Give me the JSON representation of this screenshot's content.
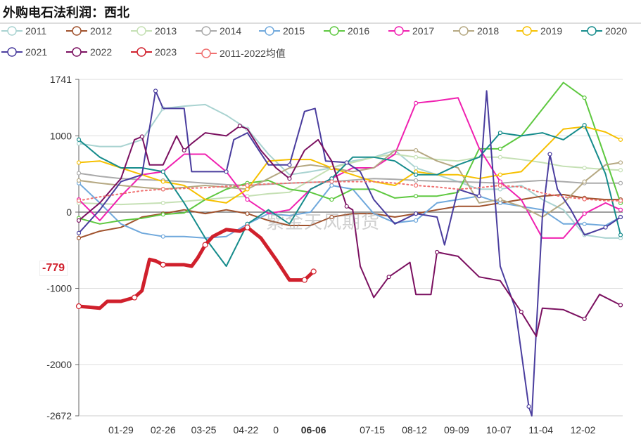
{
  "title": "外购电石法利润：西北",
  "watermark": "紫金天风期货",
  "chart_data": {
    "type": "line",
    "title": "外购电石法利润：西北",
    "ylim": [
      -2672,
      1741
    ],
    "y_ticks": [
      "1741",
      "1000",
      "0",
      "-1000",
      "-2000",
      "-2672"
    ],
    "x_ticks": [
      {
        "label": "01-29",
        "date": "01-29"
      },
      {
        "label": "02-26",
        "date": "02-26"
      },
      {
        "label": "03-25",
        "date": "03-25"
      },
      {
        "label": "04-22",
        "date": "04-22"
      },
      {
        "label": "0",
        "date": "05-12"
      },
      {
        "label": "06-06",
        "date": "06-06",
        "highlight": true
      },
      {
        "label": "07-15",
        "date": "07-15"
      },
      {
        "label": "08-12",
        "date": "08-12"
      },
      {
        "label": "09-09",
        "date": "09-09"
      },
      {
        "label": "10-07",
        "date": "10-07"
      },
      {
        "label": "11-04",
        "date": "11-04"
      },
      {
        "label": "12-02",
        "date": "12-02"
      }
    ],
    "grid": "horizontal",
    "legend_placement": "top",
    "current_value_label": "-779",
    "x": [
      "01-01",
      "01-15",
      "01-29",
      "02-12",
      "02-26",
      "03-12",
      "03-26",
      "04-09",
      "04-23",
      "05-07",
      "05-21",
      "06-04",
      "06-18",
      "07-02",
      "07-16",
      "07-30",
      "08-13",
      "08-27",
      "09-10",
      "09-24",
      "10-08",
      "10-22",
      "11-05",
      "11-19",
      "12-03",
      "12-17",
      "12-27"
    ],
    "series": [
      {
        "name": "2011",
        "color": "#a9d3d1",
        "values": [
          900,
          860,
          860,
          950,
          1360,
          1390,
          1410,
          1270,
          1090,
          760,
          490,
          530,
          580,
          670,
          720,
          810,
          580,
          490,
          400,
          300,
          300,
          350,
          165,
          30,
          -300,
          -340,
          -340
        ]
      },
      {
        "name": "2012",
        "color": "#a0522d",
        "values": [
          -340,
          -250,
          -200,
          -65,
          -20,
          30,
          -20,
          30,
          -20,
          -110,
          -175,
          -175,
          -65,
          -20,
          -20,
          -65,
          -20,
          30,
          75,
          75,
          120,
          165,
          210,
          230,
          185,
          165,
          165
        ]
      },
      {
        "name": "2013",
        "color": "#c5e0b4",
        "values": [
          120,
          110,
          100,
          110,
          120,
          140,
          165,
          190,
          210,
          240,
          260,
          420,
          580,
          650,
          720,
          760,
          720,
          690,
          670,
          720,
          720,
          690,
          650,
          600,
          580,
          560,
          550
        ]
      },
      {
        "name": "2014",
        "color": "#aaaaaa",
        "values": [
          510,
          470,
          440,
          425,
          415,
          400,
          380,
          360,
          350,
          365,
          380,
          390,
          400,
          420,
          440,
          430,
          415,
          405,
          400,
          390,
          380,
          400,
          415,
          400,
          380,
          380,
          380
        ]
      },
      {
        "name": "2015",
        "color": "#6fa8dc",
        "values": [
          380,
          120,
          -155,
          -275,
          -320,
          -320,
          -340,
          -320,
          -155,
          -20,
          -45,
          0,
          350,
          300,
          -20,
          -140,
          -110,
          120,
          165,
          210,
          120,
          75,
          30,
          -155,
          -155,
          -175,
          -65
        ]
      },
      {
        "name": "2016",
        "color": "#5ec840",
        "values": [
          -80,
          -155,
          -110,
          -80,
          -30,
          -10,
          165,
          300,
          380,
          415,
          300,
          260,
          165,
          300,
          300,
          185,
          210,
          210,
          260,
          830,
          830,
          1000,
          1350,
          1700,
          1500,
          700,
          120
        ]
      },
      {
        "name": "2017",
        "color": "#f020b0",
        "values": [
          165,
          -110,
          210,
          490,
          530,
          760,
          760,
          530,
          165,
          -20,
          30,
          300,
          440,
          580,
          580,
          760,
          1430,
          1460,
          1500,
          840,
          400,
          165,
          -340,
          -340,
          -20,
          120,
          30
        ]
      },
      {
        "name": "2018",
        "color": "#b5a882",
        "values": [
          415,
          380,
          350,
          325,
          300,
          325,
          350,
          325,
          300,
          440,
          580,
          620,
          580,
          530,
          580,
          810,
          810,
          670,
          580,
          120,
          165,
          75,
          -65,
          120,
          400,
          620,
          650
        ]
      },
      {
        "name": "2019",
        "color": "#f6c000",
        "values": [
          650,
          670,
          580,
          490,
          400,
          350,
          165,
          120,
          300,
          670,
          690,
          690,
          580,
          490,
          400,
          350,
          530,
          490,
          490,
          440,
          490,
          530,
          810,
          1090,
          1120,
          1050,
          950
        ]
      },
      {
        "name": "2020",
        "color": "#168c8c",
        "values": [
          950,
          720,
          580,
          580,
          530,
          120,
          -340,
          -710,
          -155,
          30,
          -155,
          300,
          440,
          720,
          720,
          670,
          490,
          490,
          620,
          720,
          1040,
          1000,
          1040,
          950,
          1140,
          500,
          -300
        ]
      },
      {
        "name": "2021",
        "color": "#4a3d9e",
        "points": [
          [
            "01-01",
            -275
          ],
          [
            "01-15",
            30
          ],
          [
            "01-29",
            400
          ],
          [
            "02-12",
            490
          ],
          [
            "02-21",
            1590
          ],
          [
            "02-26",
            1360
          ],
          [
            "03-12",
            1360
          ],
          [
            "03-17",
            530
          ],
          [
            "04-09",
            530
          ],
          [
            "04-14",
            950
          ],
          [
            "04-23",
            1040
          ],
          [
            "05-07",
            620
          ],
          [
            "05-21",
            620
          ],
          [
            "05-31",
            1320
          ],
          [
            "06-07",
            1360
          ],
          [
            "06-14",
            670
          ],
          [
            "06-28",
            650
          ],
          [
            "07-07",
            530
          ],
          [
            "07-16",
            165
          ],
          [
            "07-30",
            -155
          ],
          [
            "08-13",
            -20
          ],
          [
            "08-27",
            -65
          ],
          [
            "09-01",
            -430
          ],
          [
            "09-10",
            300
          ],
          [
            "09-24",
            210
          ],
          [
            "09-29",
            1590
          ],
          [
            "10-08",
            -710
          ],
          [
            "10-18",
            -1260
          ],
          [
            "10-27",
            -2550
          ],
          [
            "10-29",
            -2672
          ],
          [
            "11-01",
            -1540
          ],
          [
            "11-05",
            -65
          ],
          [
            "11-10",
            760
          ],
          [
            "11-15",
            300
          ],
          [
            "11-24",
            30
          ],
          [
            "12-03",
            -300
          ],
          [
            "12-17",
            -200
          ],
          [
            "12-27",
            -65
          ]
        ]
      },
      {
        "name": "2022",
        "color": "#7b1060",
        "points": [
          [
            "01-01",
            -110
          ],
          [
            "01-15",
            120
          ],
          [
            "01-29",
            440
          ],
          [
            "02-07",
            950
          ],
          [
            "02-12",
            990
          ],
          [
            "02-17",
            620
          ],
          [
            "02-26",
            620
          ],
          [
            "03-07",
            1000
          ],
          [
            "03-12",
            810
          ],
          [
            "03-17",
            900
          ],
          [
            "03-26",
            1040
          ],
          [
            "04-09",
            1000
          ],
          [
            "04-18",
            1130
          ],
          [
            "04-23",
            1090
          ],
          [
            "05-02",
            810
          ],
          [
            "05-12",
            580
          ],
          [
            "05-21",
            440
          ],
          [
            "05-31",
            810
          ],
          [
            "06-09",
            950
          ],
          [
            "06-18",
            670
          ],
          [
            "06-28",
            75
          ],
          [
            "07-02",
            30
          ],
          [
            "07-07",
            -710
          ],
          [
            "07-16",
            -1120
          ],
          [
            "07-26",
            -850
          ],
          [
            "08-09",
            -660
          ],
          [
            "08-13",
            -1080
          ],
          [
            "08-23",
            -1080
          ],
          [
            "08-27",
            -525
          ],
          [
            "09-10",
            -580
          ],
          [
            "09-24",
            -850
          ],
          [
            "10-08",
            -900
          ],
          [
            "10-22",
            -1310
          ],
          [
            "11-01",
            -1630
          ],
          [
            "11-05",
            -1260
          ],
          [
            "11-19",
            -1280
          ],
          [
            "12-03",
            -1400
          ],
          [
            "12-13",
            -1080
          ],
          [
            "12-27",
            -1220
          ]
        ]
      },
      {
        "name": "2023",
        "color": "#d0202c",
        "bold": true,
        "points": [
          [
            "01-01",
            -1235
          ],
          [
            "01-15",
            -1260
          ],
          [
            "01-20",
            -1170
          ],
          [
            "01-29",
            -1170
          ],
          [
            "02-07",
            -1120
          ],
          [
            "02-12",
            -1030
          ],
          [
            "02-17",
            -620
          ],
          [
            "02-21",
            -640
          ],
          [
            "02-26",
            -690
          ],
          [
            "03-12",
            -690
          ],
          [
            "03-17",
            -710
          ],
          [
            "03-21",
            -600
          ],
          [
            "03-26",
            -430
          ],
          [
            "03-31",
            -320
          ],
          [
            "04-09",
            -230
          ],
          [
            "04-18",
            -250
          ],
          [
            "04-23",
            -200
          ],
          [
            "05-02",
            -340
          ],
          [
            "05-12",
            -620
          ],
          [
            "05-21",
            -890
          ],
          [
            "05-31",
            -890
          ],
          [
            "06-06",
            -779
          ]
        ]
      },
      {
        "name": "2011-2022均值",
        "color": "#f07070",
        "dotted": true,
        "values": [
          150,
          200,
          240,
          280,
          300,
          310,
          320,
          340,
          350,
          370,
          380,
          390,
          400,
          400,
          400,
          380,
          350,
          330,
          300,
          320,
          350,
          330,
          250,
          200,
          170,
          150,
          150
        ]
      }
    ]
  }
}
